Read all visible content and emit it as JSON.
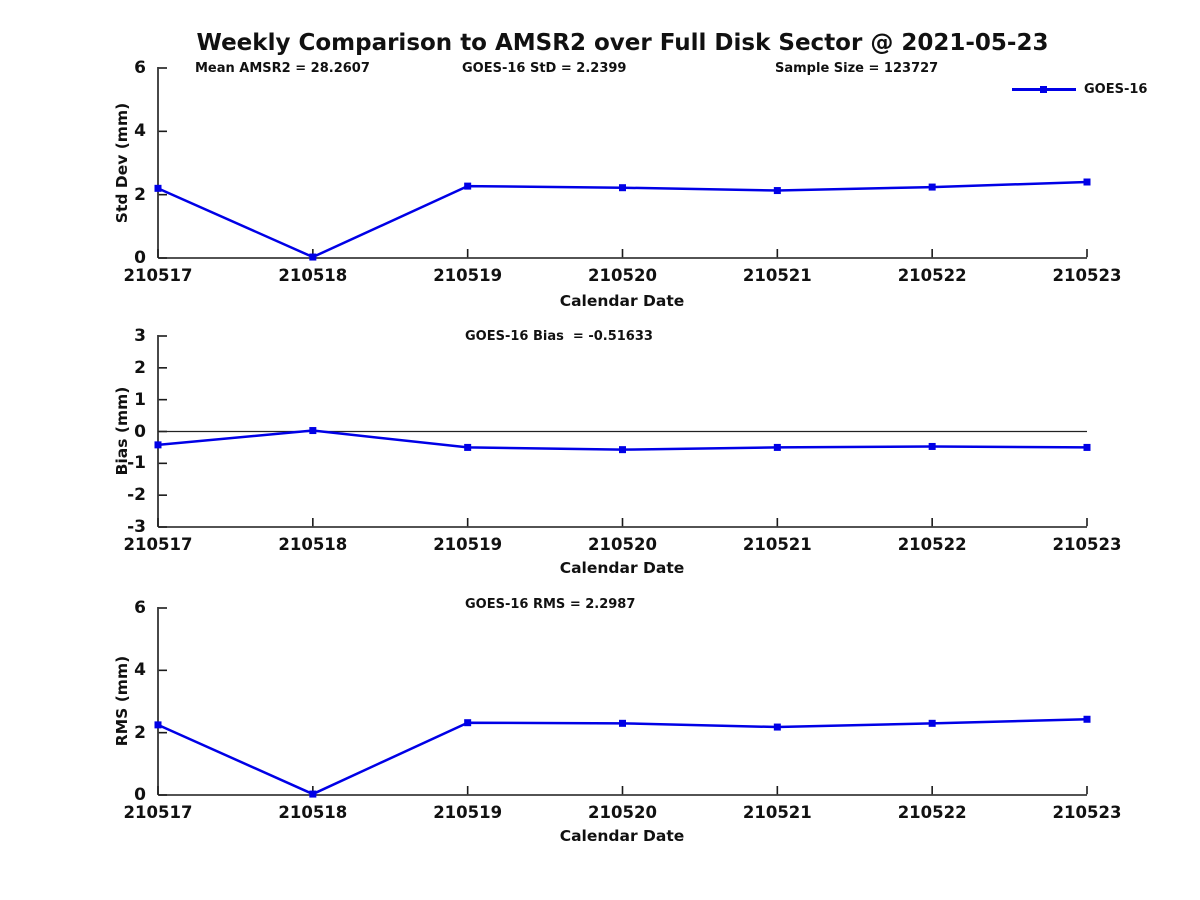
{
  "page": {
    "title": "Weekly Comparison to AMSR2 over Full Disk Sector @ 2021-05-23"
  },
  "colors": {
    "line": "#0000E6",
    "axis": "#1a1a1a",
    "zero_line": "#222222",
    "text": "#111111",
    "background": "#ffffff"
  },
  "legend": {
    "label": "GOES-16",
    "position": "top-right",
    "marker": "filled-square"
  },
  "chart_data": [
    {
      "type": "line",
      "panel": "std-dev",
      "annotations": [
        "Mean AMSR2 = 28.2607",
        "GOES-16 StD = 2.2399",
        "Sample Size = 123727"
      ],
      "xlabel": "Calendar Date",
      "ylabel": "Std Dev (mm)",
      "categories": [
        "210517",
        "210518",
        "210519",
        "210520",
        "210521",
        "210522",
        "210523"
      ],
      "series": [
        {
          "name": "GOES-16",
          "values": [
            2.2,
            0.03,
            2.27,
            2.22,
            2.13,
            2.24,
            2.4
          ]
        }
      ],
      "ylim": [
        0,
        6
      ],
      "yticks": [
        0,
        2,
        4,
        6
      ],
      "zero_line": false,
      "grid": false
    },
    {
      "type": "line",
      "panel": "bias",
      "annotations": [
        "GOES-16 Bias  = -0.51633"
      ],
      "xlabel": "Calendar Date",
      "ylabel": "Bias (mm)",
      "categories": [
        "210517",
        "210518",
        "210519",
        "210520",
        "210521",
        "210522",
        "210523"
      ],
      "series": [
        {
          "name": "GOES-16",
          "values": [
            -0.42,
            0.03,
            -0.5,
            -0.57,
            -0.5,
            -0.47,
            -0.5
          ]
        }
      ],
      "ylim": [
        -3,
        3
      ],
      "yticks": [
        -3,
        -2,
        -1,
        0,
        1,
        2,
        3
      ],
      "zero_line": true,
      "grid": false
    },
    {
      "type": "line",
      "panel": "rms",
      "annotations": [
        "GOES-16 RMS = 2.2987"
      ],
      "xlabel": "Calendar Date",
      "ylabel": "RMS (mm)",
      "categories": [
        "210517",
        "210518",
        "210519",
        "210520",
        "210521",
        "210522",
        "210523"
      ],
      "series": [
        {
          "name": "GOES-16",
          "values": [
            2.25,
            0.03,
            2.32,
            2.3,
            2.18,
            2.3,
            2.43
          ]
        }
      ],
      "ylim": [
        0,
        6
      ],
      "yticks": [
        0,
        2,
        4,
        6
      ],
      "zero_line": false,
      "grid": false
    }
  ]
}
